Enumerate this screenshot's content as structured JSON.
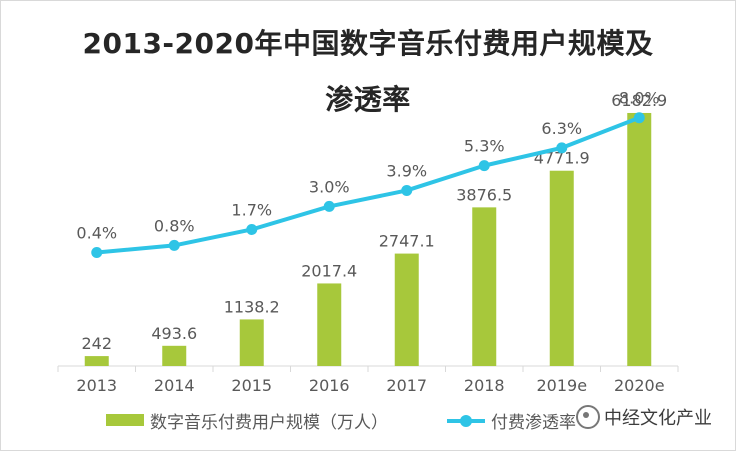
{
  "chart_data": {
    "type": "bar+line",
    "title_line1": "2013-2020年中国数字音乐付费用户规模及",
    "title_line2": "渗透率",
    "categories": [
      "2013",
      "2014",
      "2015",
      "2016",
      "2017",
      "2018",
      "2019e",
      "2020e"
    ],
    "series": [
      {
        "name": "数字音乐付费用户规模（万人）",
        "type": "bar",
        "values": [
          242,
          493.6,
          1138.2,
          2017.4,
          2747.1,
          3876.5,
          4771.9,
          6182.9
        ],
        "labels": [
          "242",
          "493.6",
          "1138.2",
          "2017.4",
          "2747.1",
          "3876.5",
          "4771.9",
          "6182.9"
        ],
        "color": "#a7c83b"
      },
      {
        "name": "付费渗透率",
        "type": "line",
        "values": [
          0.4,
          0.8,
          1.7,
          3.0,
          3.9,
          5.3,
          6.3,
          8.0
        ],
        "labels": [
          "0.4%",
          "0.8%",
          "1.7%",
          "3.0%",
          "3.9%",
          "5.3%",
          "6.3%",
          "8.0%"
        ],
        "color": "#2ec4e6"
      }
    ],
    "bar_axis_range": [
      0,
      6500
    ],
    "line_axis_range": [
      -6,
      9
    ],
    "grid": false,
    "legend_position": "bottom"
  },
  "watermark": "中经文化产业"
}
